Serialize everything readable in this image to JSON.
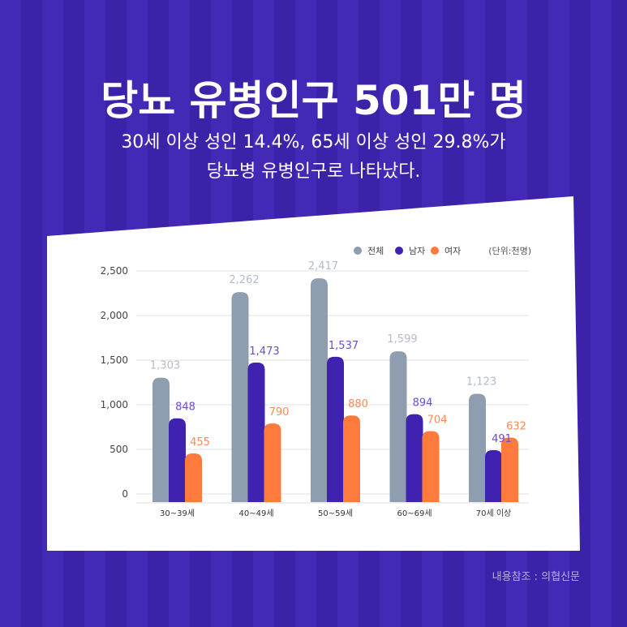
{
  "header": {
    "title": "당뇨 유병인구 501만 명",
    "subtitle_line1": "30세 이상 성인 14.4%, 65세 이상 성인 29.8%가",
    "subtitle_line2": "당뇨병 유병인구로 나타났다."
  },
  "source": "내용참조 : 의협신문",
  "colors": {
    "total": "#8f9db1",
    "male": "#3f22b0",
    "female": "#ff7a3d",
    "total_label": "#b4bcc9",
    "male_label": "#6a4fc9",
    "female_label": "#ff8a55"
  },
  "chart_data": {
    "type": "bar",
    "title": "",
    "unit_label": "(단위:천명)",
    "categories": [
      "30~39세",
      "40~49세",
      "50~59세",
      "60~69세",
      "70세 이상"
    ],
    "series": [
      {
        "name": "전체",
        "key": "total",
        "values": [
          1303,
          2262,
          2417,
          1599,
          1123
        ]
      },
      {
        "name": "남자",
        "key": "male",
        "values": [
          848,
          1473,
          1537,
          894,
          491
        ]
      },
      {
        "name": "여자",
        "key": "female",
        "values": [
          455,
          790,
          880,
          704,
          632
        ]
      }
    ],
    "ylim": [
      0,
      2500
    ],
    "yticks": [
      0,
      500,
      1000,
      1500,
      2000,
      2500
    ],
    "ytick_labels": [
      "0",
      "500",
      "1,000",
      "1,500",
      "2,000",
      "2,500"
    ],
    "value_labels": [
      [
        "1,303",
        "2,262",
        "2,417",
        "1,599",
        "1,123"
      ],
      [
        "848",
        "1,473",
        "1,537",
        "894",
        "491"
      ],
      [
        "455",
        "790",
        "880",
        "704",
        "632"
      ]
    ],
    "legend_position": "top-right",
    "grid": true
  }
}
